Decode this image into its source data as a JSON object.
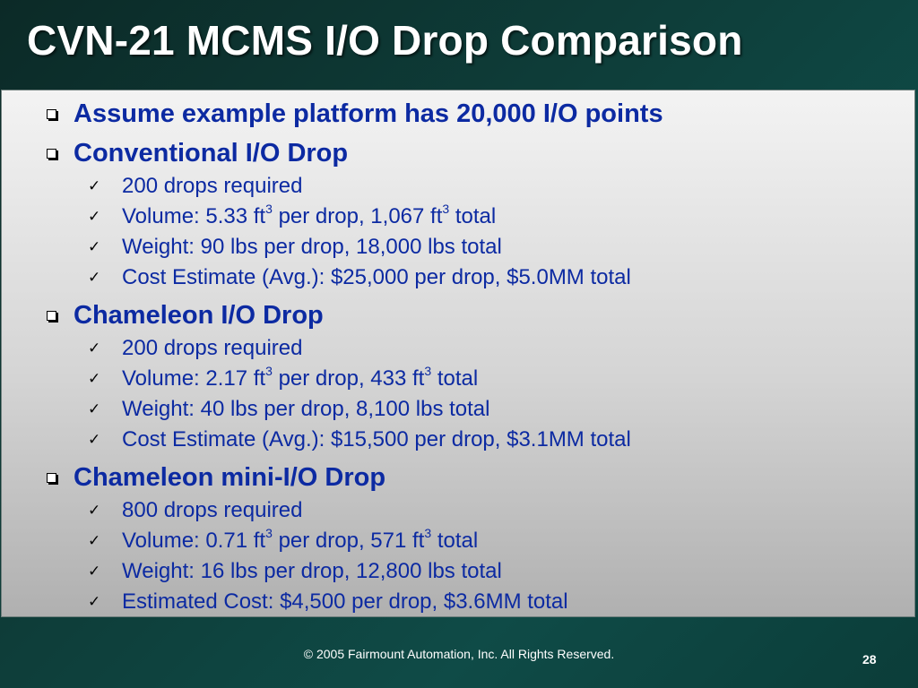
{
  "title": "CVN-21 MCMS I/O Drop Comparison",
  "sections": [
    {
      "label": "Assume example platform has 20,000 I/O points"
    },
    {
      "label": "Conventional I/O Drop",
      "items": [
        {
          "text": "200 drops required"
        },
        {
          "a": "Volume:  5.33 ft",
          "sup1": "3",
          "b": " per drop, 1,067 ft",
          "sup2": "3",
          "c": " total"
        },
        {
          "text": "Weight:  90 lbs per drop, 18,000 lbs total"
        },
        {
          "text": "Cost Estimate (Avg.):  $25,000 per drop, $5.0MM total"
        }
      ]
    },
    {
      "label": "Chameleon I/O Drop",
      "items": [
        {
          "text": "200 drops required"
        },
        {
          "a": "Volume: 2.17 ft",
          "sup1": "3",
          "b": " per drop, 433 ft",
          "sup2": "3",
          "c": " total"
        },
        {
          "text": "Weight:  40 lbs per drop, 8,100 lbs total"
        },
        {
          "text": "Cost Estimate (Avg.):  $15,500 per drop, $3.1MM total"
        }
      ]
    },
    {
      "label": "Chameleon mini-I/O Drop",
      "items": [
        {
          "text": "800 drops required"
        },
        {
          "a": "Volume:  0.71 ft",
          "sup1": "3",
          "b": " per drop, 571 ft",
          "sup2": "3",
          "c": " total"
        },
        {
          "text": "Weight:  16 lbs per drop, 12,800 lbs total"
        },
        {
          "text": "Estimated Cost: $4,500 per drop, $3.6MM total"
        }
      ]
    }
  ],
  "footer": {
    "copyright": "© 2005 Fairmount Automation, Inc.  All Rights Reserved.",
    "page_number": "28"
  },
  "colors": {
    "background": "#0e3f3b",
    "heading_text": "#ffffff",
    "bullet_text": "#0c2aa2"
  },
  "icons": {
    "section_bullet": "hollow-square-bullet-icon",
    "item_bullet": "checkmark-icon"
  }
}
